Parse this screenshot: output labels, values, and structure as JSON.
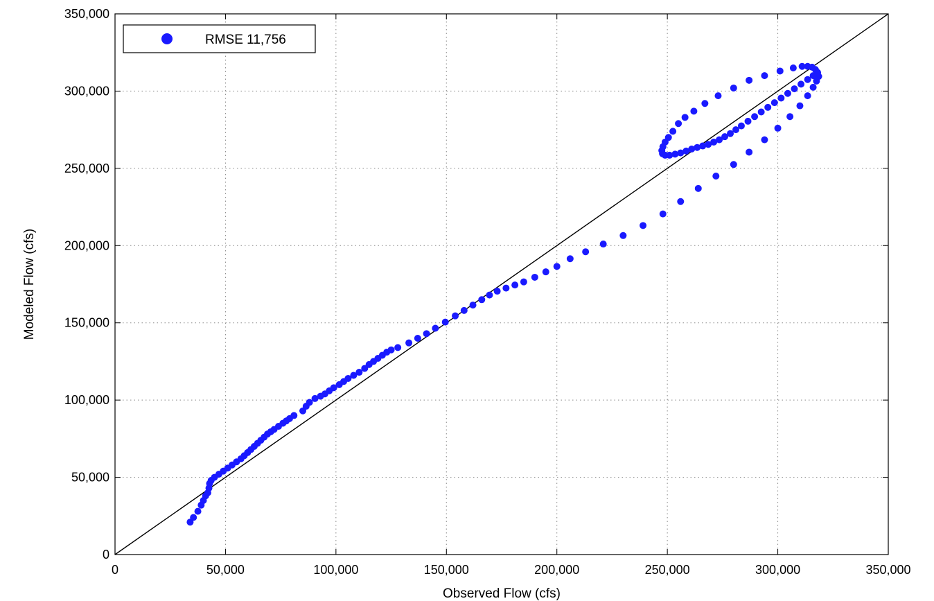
{
  "chart_data": {
    "type": "scatter",
    "xlabel": "Observed Flow (cfs)",
    "ylabel": "Modeled Flow (cfs)",
    "xlim": [
      0,
      350000
    ],
    "ylim": [
      0,
      350000
    ],
    "xticks": [
      0,
      50000,
      100000,
      150000,
      200000,
      250000,
      300000,
      350000
    ],
    "yticks": [
      0,
      50000,
      100000,
      150000,
      200000,
      250000,
      300000,
      350000
    ],
    "xtick_labels": [
      "0",
      "50,000",
      "100,000",
      "150,000",
      "200,000",
      "250,000",
      "300,000",
      "350,000"
    ],
    "ytick_labels": [
      "0",
      "50,000",
      "100,000",
      "150,000",
      "200,000",
      "250,000",
      "300,000",
      "350,000"
    ],
    "grid": true,
    "legend_position": "top-left",
    "reference_line": {
      "from": [
        0,
        0
      ],
      "to": [
        350000,
        350000
      ],
      "color": "#000000"
    },
    "series": [
      {
        "name": "RMSE 11,756",
        "color": "#1a1aff",
        "points": [
          [
            34000,
            21000
          ],
          [
            35500,
            24000
          ],
          [
            37500,
            28000
          ],
          [
            39000,
            32000
          ],
          [
            40000,
            35000
          ],
          [
            41000,
            38000
          ],
          [
            42000,
            40000
          ],
          [
            42500,
            43000
          ],
          [
            42800,
            46000
          ],
          [
            43500,
            48000
          ],
          [
            45000,
            50000
          ],
          [
            47000,
            52000
          ],
          [
            49000,
            54000
          ],
          [
            51000,
            56000
          ],
          [
            53000,
            58000
          ],
          [
            55000,
            60000
          ],
          [
            57000,
            62000
          ],
          [
            58500,
            64000
          ],
          [
            60000,
            66000
          ],
          [
            61500,
            68000
          ],
          [
            63000,
            70000
          ],
          [
            64500,
            72000
          ],
          [
            66000,
            74000
          ],
          [
            67500,
            76000
          ],
          [
            69000,
            78000
          ],
          [
            70500,
            79500
          ],
          [
            72000,
            81000
          ],
          [
            74000,
            83000
          ],
          [
            76000,
            85000
          ],
          [
            77500,
            86500
          ],
          [
            79000,
            88000
          ],
          [
            81000,
            90000
          ],
          [
            85000,
            93000
          ],
          [
            86500,
            96000
          ],
          [
            88000,
            98500
          ],
          [
            90500,
            101000
          ],
          [
            93000,
            102500
          ],
          [
            95000,
            104000
          ],
          [
            97000,
            106000
          ],
          [
            99000,
            108000
          ],
          [
            101500,
            110000
          ],
          [
            103500,
            112000
          ],
          [
            105500,
            114000
          ],
          [
            108000,
            116000
          ],
          [
            110500,
            118000
          ],
          [
            113000,
            120500
          ],
          [
            115000,
            123000
          ],
          [
            117000,
            125000
          ],
          [
            119000,
            127000
          ],
          [
            121000,
            129000
          ],
          [
            123000,
            131000
          ],
          [
            125000,
            132500
          ],
          [
            128000,
            134000
          ],
          [
            133000,
            137000
          ],
          [
            137000,
            140000
          ],
          [
            141000,
            143000
          ],
          [
            145000,
            146500
          ],
          [
            149500,
            150500
          ],
          [
            154000,
            154500
          ],
          [
            158000,
            158000
          ],
          [
            162000,
            161500
          ],
          [
            166000,
            165000
          ],
          [
            169500,
            168000
          ],
          [
            173000,
            170500
          ],
          [
            177000,
            172500
          ],
          [
            181000,
            174500
          ],
          [
            185000,
            176500
          ],
          [
            190000,
            179500
          ],
          [
            195000,
            183000
          ],
          [
            200000,
            186500
          ],
          [
            206000,
            191500
          ],
          [
            213000,
            196000
          ],
          [
            221000,
            201000
          ],
          [
            230000,
            206500
          ],
          [
            239000,
            213000
          ],
          [
            248000,
            220500
          ],
          [
            256000,
            228500
          ],
          [
            264000,
            237000
          ],
          [
            272000,
            245000
          ],
          [
            280000,
            252500
          ],
          [
            287000,
            260500
          ],
          [
            294000,
            268500
          ],
          [
            300000,
            276000
          ],
          [
            305500,
            283500
          ],
          [
            310000,
            290500
          ],
          [
            313500,
            297000
          ],
          [
            316000,
            302500
          ],
          [
            317500,
            306500
          ],
          [
            318500,
            309500
          ],
          [
            318000,
            312000
          ],
          [
            317000,
            314000
          ],
          [
            315500,
            315500
          ],
          [
            313500,
            316000
          ],
          [
            311000,
            316000
          ],
          [
            307000,
            315000
          ],
          [
            301000,
            313000
          ],
          [
            294000,
            310000
          ],
          [
            287000,
            307000
          ],
          [
            280000,
            302000
          ],
          [
            273000,
            297000
          ],
          [
            267000,
            292000
          ],
          [
            262000,
            287000
          ],
          [
            258000,
            283000
          ],
          [
            255000,
            279000
          ],
          [
            252500,
            274000
          ],
          [
            250500,
            270000
          ],
          [
            249000,
            267000
          ],
          [
            248000,
            264000
          ],
          [
            247500,
            261500
          ],
          [
            247800,
            259500
          ],
          [
            249000,
            258500
          ],
          [
            251000,
            258500
          ],
          [
            253500,
            259200
          ],
          [
            256000,
            260000
          ],
          [
            258500,
            261200
          ],
          [
            261000,
            262500
          ],
          [
            263500,
            263500
          ],
          [
            266000,
            264500
          ],
          [
            268500,
            265500
          ],
          [
            271000,
            267000
          ],
          [
            273500,
            268500
          ],
          [
            276000,
            270500
          ],
          [
            278500,
            272500
          ],
          [
            281000,
            275000
          ],
          [
            283500,
            277500
          ],
          [
            286500,
            280500
          ],
          [
            289500,
            283500
          ],
          [
            292500,
            286500
          ],
          [
            295500,
            289500
          ],
          [
            298500,
            292500
          ],
          [
            301500,
            295500
          ],
          [
            304500,
            298500
          ],
          [
            307500,
            301500
          ],
          [
            310500,
            304500
          ],
          [
            313500,
            307500
          ],
          [
            316000,
            310000
          ],
          [
            318000,
            312000
          ]
        ]
      }
    ]
  }
}
